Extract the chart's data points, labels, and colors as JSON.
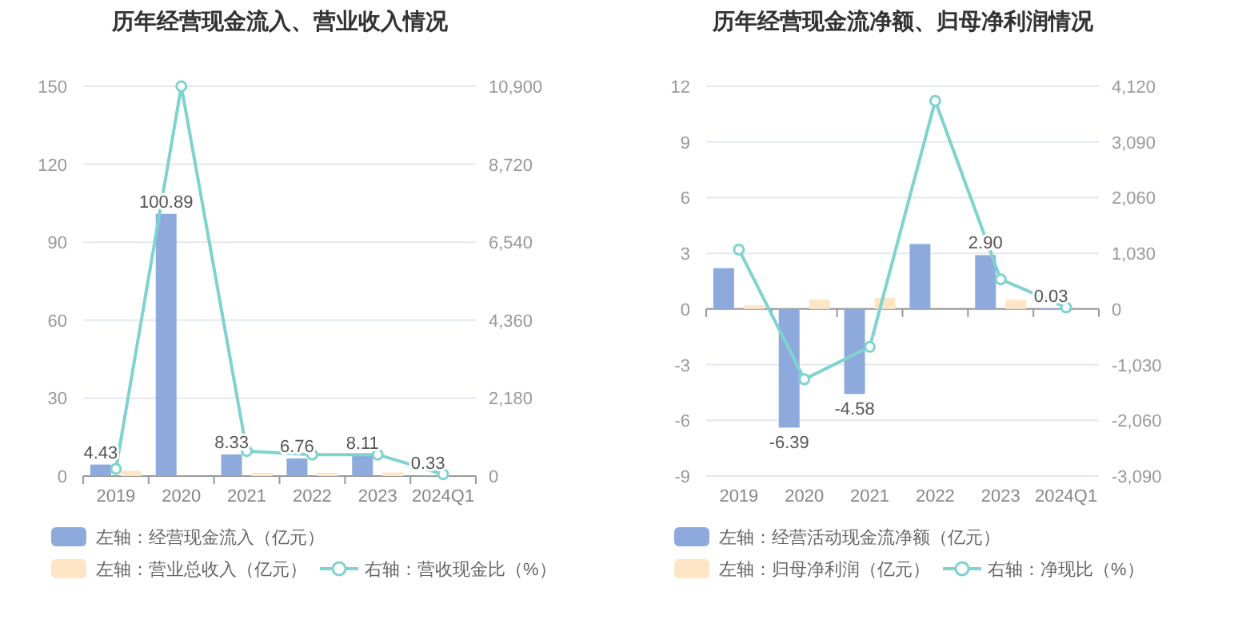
{
  "chart_data": [
    {
      "type": "bar",
      "title": "历年经营现金流入、营业收入情况",
      "categories": [
        "2019",
        "2020",
        "2021",
        "2022",
        "2023",
        "2024Q1"
      ],
      "series": [
        {
          "name": "左轴：经营现金流入（亿元）",
          "color": "#8eaadc",
          "values": [
            4.43,
            100.89,
            8.33,
            6.76,
            8.11,
            0.33
          ],
          "value_labels": [
            "4.43",
            "100.89",
            "8.33",
            "6.76",
            "8.11",
            "0.33"
          ]
        },
        {
          "name": "左轴：营业总收入（亿元）",
          "color": "#fde5c5",
          "values": [
            2,
            null,
            1.2,
            1.2,
            1.4,
            null
          ]
        },
        {
          "name": "右轴：营收现金比（%）",
          "type": "line",
          "axis": "y2",
          "color": "#7fd3cf",
          "marker": "circle",
          "values": [
            200,
            10900,
            700,
            600,
            600,
            50
          ]
        }
      ],
      "ylim": [
        0,
        150
      ],
      "yticks": [
        0,
        30,
        60,
        90,
        120,
        150
      ],
      "y2lim": [
        0,
        10900
      ],
      "y2ticks": [
        0,
        {
          "value": 2180,
          "label": "2,180"
        },
        {
          "value": 4360,
          "label": "4,360"
        },
        {
          "value": 6540,
          "label": "6,540"
        },
        {
          "value": 8720,
          "label": "8,720"
        },
        {
          "value": 10900,
          "label": "10,900"
        }
      ],
      "grid": "y",
      "legend": "bottom"
    },
    {
      "type": "bar",
      "title": "历年经营现金流净额、归母净利润情况",
      "categories": [
        "2019",
        "2020",
        "2021",
        "2022",
        "2023",
        "2024Q1"
      ],
      "series": [
        {
          "name": "左轴：经营活动现金流净额（亿元）",
          "color": "#8eaadc",
          "values": [
            2.2,
            -6.39,
            -4.58,
            3.5,
            2.9,
            0.03
          ],
          "value_labels": [
            null,
            "-6.39",
            "-4.58",
            null,
            "2.90",
            "0.03"
          ]
        },
        {
          "name": "左轴：归母净利润（亿元）",
          "color": "#fde5c5",
          "values": [
            0.2,
            0.5,
            0.6,
            null,
            0.5,
            null
          ]
        },
        {
          "name": "右轴：净现比（%）",
          "type": "line",
          "axis": "y2",
          "color": "#7fd3cf",
          "marker": "circle",
          "values": [
            1100,
            -1300,
            -700,
            3850,
            550,
            30
          ]
        }
      ],
      "ylim": [
        -9,
        12
      ],
      "yticks": [
        -9,
        -6,
        -3,
        0,
        3,
        6,
        9,
        12
      ],
      "y2lim": [
        -3090,
        4120
      ],
      "y2ticks": [
        {
          "value": -3090,
          "label": "-3,090"
        },
        {
          "value": -2060,
          "label": "-2,060"
        },
        {
          "value": -1030,
          "label": "-1,030"
        },
        0,
        {
          "value": 1030,
          "label": "1,030"
        },
        {
          "value": 2060,
          "label": "2,060"
        },
        {
          "value": 3090,
          "label": "3,090"
        },
        {
          "value": 4120,
          "label": "4,120"
        }
      ],
      "grid": "y",
      "legend": "bottom"
    }
  ]
}
